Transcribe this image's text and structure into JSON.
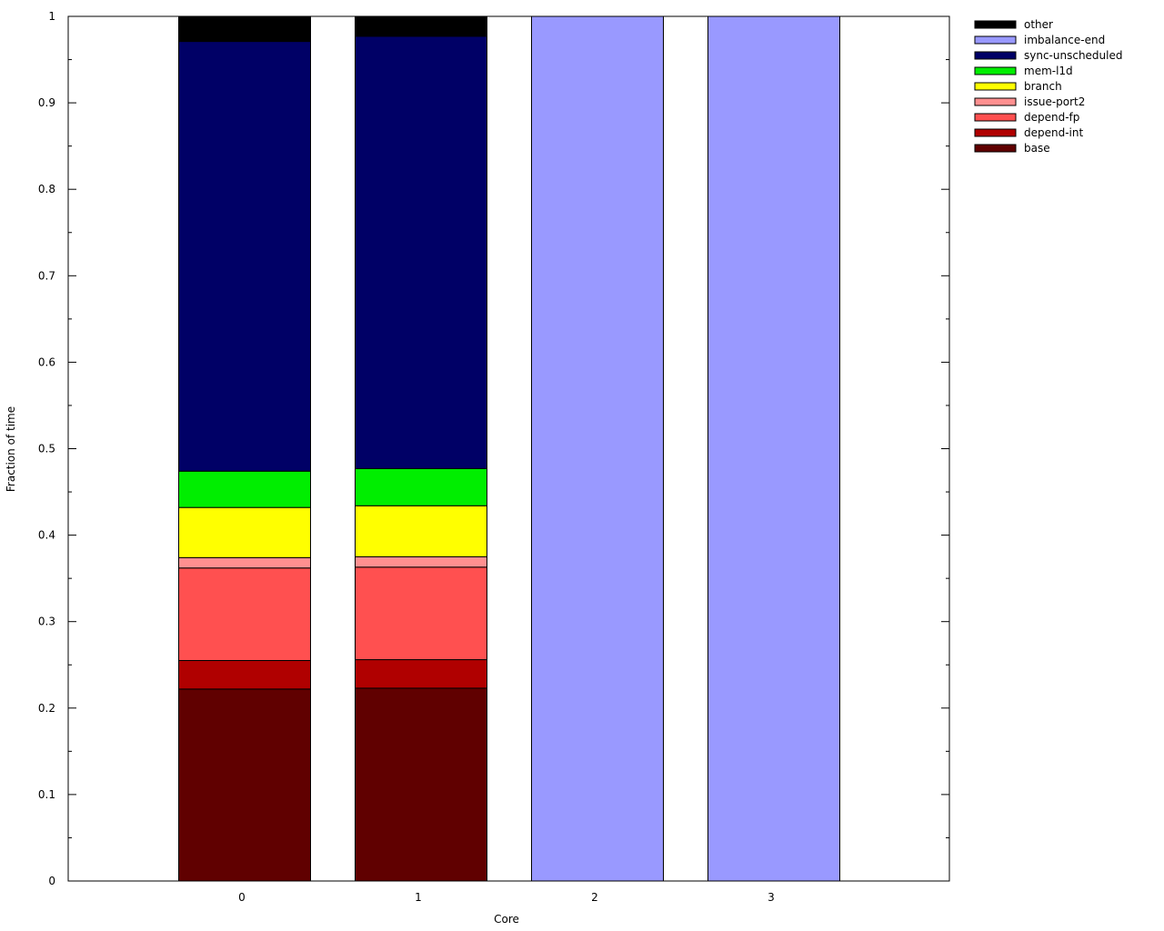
{
  "chart_data": {
    "type": "bar",
    "stacked": true,
    "xlabel": "Core",
    "ylabel": "Fraction of time",
    "ylim": [
      0,
      1
    ],
    "yticks": [
      "0",
      "0.1",
      "0.2",
      "0.3",
      "0.4",
      "0.5",
      "0.6",
      "0.7",
      "0.8",
      "0.9",
      "1"
    ],
    "categories": [
      "0",
      "1",
      "2",
      "3"
    ],
    "legend_position": "top-right",
    "series": [
      {
        "name": "base",
        "color": "#600000",
        "values": [
          0.222,
          0.223,
          0,
          0
        ]
      },
      {
        "name": "depend-int",
        "color": "#b00000",
        "values": [
          0.033,
          0.033,
          0,
          0
        ]
      },
      {
        "name": "depend-fp",
        "color": "#ff5050",
        "values": [
          0.107,
          0.107,
          0,
          0
        ]
      },
      {
        "name": "issue-port2",
        "color": "#ff9090",
        "values": [
          0.012,
          0.012,
          0,
          0
        ]
      },
      {
        "name": "branch",
        "color": "#ffff00",
        "values": [
          0.058,
          0.059,
          0,
          0
        ]
      },
      {
        "name": "mem-l1d",
        "color": "#00ee00",
        "values": [
          0.042,
          0.043,
          0,
          0
        ]
      },
      {
        "name": "sync-unscheduled",
        "color": "#000066",
        "values": [
          0.497,
          0.5,
          0,
          0
        ]
      },
      {
        "name": "imbalance-end",
        "color": "#9999ff",
        "values": [
          0,
          0,
          1.0,
          1.0
        ]
      },
      {
        "name": "other",
        "color": "#000000",
        "values": [
          0.029,
          0.023,
          0,
          0
        ]
      }
    ]
  }
}
